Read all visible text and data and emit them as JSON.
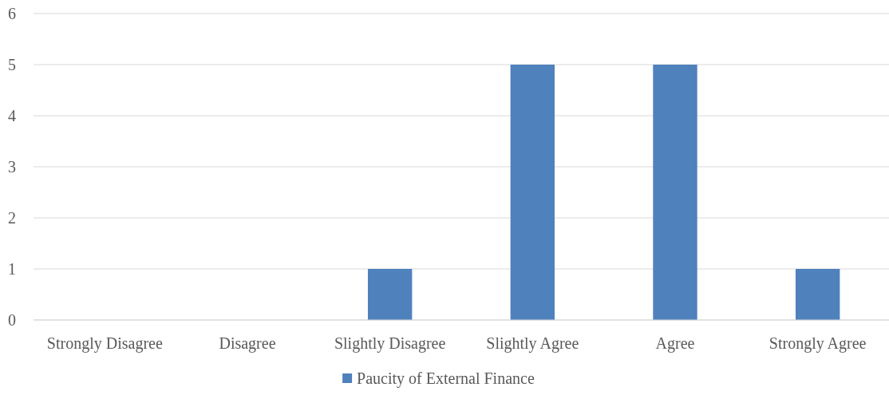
{
  "chart_data": {
    "type": "bar",
    "categories": [
      "Strongly Disagree",
      "Disagree",
      "Slightly Disagree",
      "Slightly Agree",
      "Agree",
      "Strongly Agree"
    ],
    "series": [
      {
        "name": "Paucity of External Finance",
        "color": "#4f81bd",
        "values": [
          0,
          0,
          1,
          5,
          5,
          1
        ]
      }
    ],
    "ylim": [
      0,
      6
    ],
    "yticks": [
      0,
      1,
      2,
      3,
      4,
      5,
      6
    ],
    "grid": "y",
    "legend": "bottom"
  }
}
